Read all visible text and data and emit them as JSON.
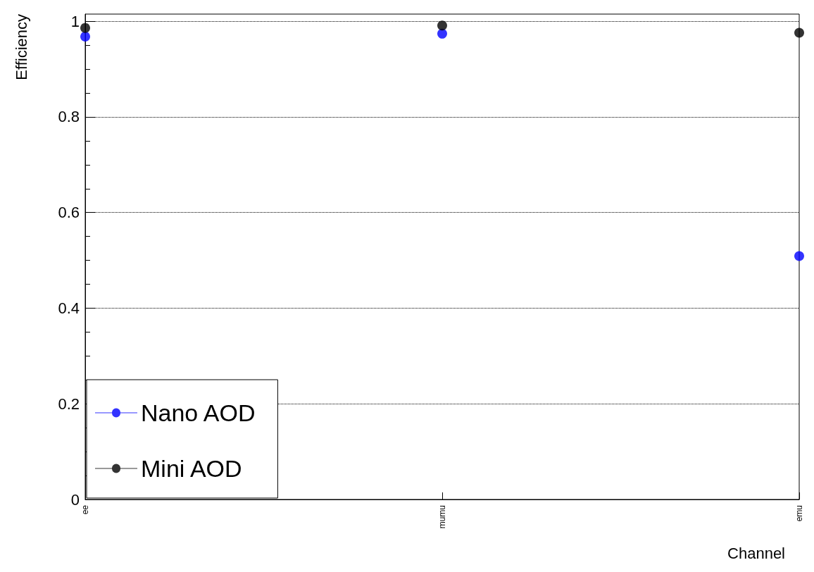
{
  "chart_data": {
    "type": "scatter",
    "xlabel": "Channel",
    "ylabel": "Efficiency",
    "categories": [
      "ee",
      "mumu",
      "emu"
    ],
    "series": [
      {
        "name": "Nano AOD",
        "color": "#0000ff",
        "values": [
          0.968,
          0.974,
          0.509
        ]
      },
      {
        "name": "Mini AOD",
        "color": "#000000",
        "values": [
          0.986,
          0.991,
          0.976
        ]
      }
    ],
    "ylim": [
      0,
      1.015
    ],
    "yticks": [
      0,
      0.2,
      0.4,
      0.6,
      0.8,
      1
    ],
    "grid": "y",
    "legend": "bottom left",
    "marker": "circle"
  }
}
